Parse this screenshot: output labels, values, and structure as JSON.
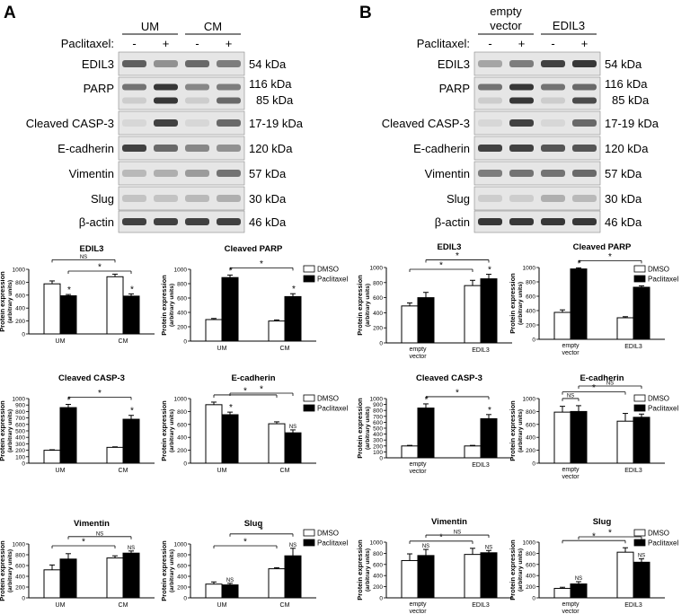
{
  "panels": [
    {
      "letter": "A",
      "groups": [
        "UM",
        "CM"
      ],
      "treatment_label": "Paclitaxel:",
      "lanes": [
        "-",
        "+",
        "-",
        "+"
      ],
      "blot_rows": [
        {
          "protein": "EDIL3",
          "size": "54 kDa",
          "bands": [
            0.65,
            0.4,
            0.6,
            0.5
          ]
        },
        {
          "protein": "PARP",
          "size": "116 kDa",
          "size2": "85 kDa",
          "bands": [
            0.55,
            0.85,
            0.45,
            0.5
          ],
          "bands2": [
            0.1,
            0.85,
            0.1,
            0.6
          ]
        },
        {
          "protein": "Cleaved CASP-3",
          "size": "17-19 kDa",
          "bands": [
            0.05,
            0.8,
            0.05,
            0.6
          ]
        },
        {
          "protein": "E-cadherin",
          "size": "120 kDa",
          "bands": [
            0.8,
            0.6,
            0.45,
            0.4
          ]
        },
        {
          "protein": "Vimentin",
          "size": "57 kDa",
          "bands": [
            0.2,
            0.25,
            0.35,
            0.55
          ]
        },
        {
          "protein": "Slug",
          "size": "30 kDa",
          "bands": [
            0.15,
            0.15,
            0.2,
            0.25
          ]
        },
        {
          "protein": "β-actin",
          "size": "46 kDa",
          "bands": [
            0.8,
            0.8,
            0.8,
            0.8
          ]
        }
      ]
    },
    {
      "letter": "B",
      "groups": [
        "empty vector",
        "EDIL3"
      ],
      "treatment_label": "Paclitaxel:",
      "lanes": [
        "-",
        "+",
        "-",
        "+"
      ],
      "blot_rows": [
        {
          "protein": "EDIL3",
          "size": "54 kDa",
          "bands": [
            0.3,
            0.5,
            0.8,
            0.85
          ]
        },
        {
          "protein": "PARP",
          "size": "116 kDa",
          "size2": "85 kDa",
          "bands": [
            0.55,
            0.85,
            0.55,
            0.6
          ],
          "bands2": [
            0.1,
            0.85,
            0.1,
            0.75
          ]
        },
        {
          "protein": "Cleaved CASP-3",
          "size": "17-19 kDa",
          "bands": [
            0.05,
            0.8,
            0.05,
            0.6
          ]
        },
        {
          "protein": "E-cadherin",
          "size": "120 kDa",
          "bands": [
            0.8,
            0.8,
            0.7,
            0.7
          ]
        },
        {
          "protein": "Vimentin",
          "size": "57 kDa",
          "bands": [
            0.5,
            0.55,
            0.55,
            0.6
          ]
        },
        {
          "protein": "Slug",
          "size": "30 kDa",
          "bands": [
            0.1,
            0.1,
            0.25,
            0.2
          ]
        },
        {
          "protein": "β-actin",
          "size": "46 kDa",
          "bands": [
            0.85,
            0.85,
            0.85,
            0.85
          ]
        }
      ]
    }
  ],
  "legend": {
    "items": [
      "DMSO",
      "Paclitaxel"
    ],
    "colors": [
      "#ffffff",
      "#000000"
    ]
  },
  "chart_data": [
    {
      "type": "bar",
      "panel": "A",
      "title": "EDIL3",
      "ylabel": "Protein expression",
      "ylabel2": "(arbitrary units)",
      "categories": [
        "UM",
        "CM"
      ],
      "ylim": [
        0,
        1000
      ],
      "yticks": [
        0,
        200,
        400,
        600,
        800,
        1000
      ],
      "series": [
        {
          "name": "DMSO",
          "values": [
            775,
            885
          ],
          "errors": [
            45,
            40
          ]
        },
        {
          "name": "Paclitaxel",
          "values": [
            590,
            585
          ],
          "errors": [
            20,
            35
          ]
        }
      ],
      "bar_marks": [
        [
          null,
          "*"
        ],
        [
          null,
          "*"
        ]
      ],
      "brackets": [
        {
          "from": [
            0,
            0
          ],
          "to": [
            1,
            0
          ],
          "label": "NS",
          "level": 1
        },
        {
          "from": [
            0,
            1
          ],
          "to": [
            1,
            1
          ],
          "label": "*",
          "level": 0
        }
      ]
    },
    {
      "type": "bar",
      "panel": "A",
      "title": "Cleaved PARP",
      "ylabel": "Protein expression",
      "ylabel2": "(arbitrary units)",
      "categories": [
        "UM",
        "CM"
      ],
      "ylim": [
        0,
        1000
      ],
      "yticks": [
        0,
        200,
        400,
        600,
        800,
        1000
      ],
      "series": [
        {
          "name": "DMSO",
          "values": [
            300,
            280
          ],
          "errors": [
            15,
            15
          ]
        },
        {
          "name": "Paclitaxel",
          "values": [
            885,
            620
          ],
          "errors": [
            35,
            40
          ]
        }
      ],
      "bar_marks": [
        [
          null,
          "*"
        ],
        [
          null,
          "*"
        ]
      ],
      "brackets": [
        {
          "from": [
            0,
            1
          ],
          "to": [
            1,
            1
          ],
          "label": "*",
          "level": 0
        }
      ]
    },
    {
      "type": "bar",
      "panel": "B",
      "title": "EDIL3",
      "ylabel": "Protein expression",
      "ylabel2": "(arbitrary units)",
      "categories": [
        "empty vector",
        "EDIL3"
      ],
      "ylim": [
        0,
        1000
      ],
      "yticks": [
        0,
        200,
        400,
        600,
        800,
        1000
      ],
      "series": [
        {
          "name": "DMSO",
          "values": [
            490,
            760
          ],
          "errors": [
            40,
            70
          ]
        },
        {
          "name": "Paclitaxel",
          "values": [
            600,
            850
          ],
          "errors": [
            70,
            60
          ]
        }
      ],
      "bar_marks": [
        [
          null,
          null
        ],
        [
          null,
          "*"
        ]
      ],
      "brackets": [
        {
          "from": [
            0,
            0
          ],
          "to": [
            1,
            0
          ],
          "label": "*",
          "level": 0
        },
        {
          "from": [
            0,
            1
          ],
          "to": [
            1,
            1
          ],
          "label": "*",
          "level": 1
        }
      ]
    },
    {
      "type": "bar",
      "panel": "B",
      "title": "Cleaved PARP",
      "ylabel": "Protein expression",
      "ylabel2": "(arbitrary units)",
      "categories": [
        "empty vector",
        "EDIL3"
      ],
      "ylim": [
        0,
        1000
      ],
      "yticks": [
        0,
        200,
        400,
        600,
        800,
        1000
      ],
      "series": [
        {
          "name": "DMSO",
          "values": [
            375,
            300
          ],
          "errors": [
            35,
            15
          ]
        },
        {
          "name": "Paclitaxel",
          "values": [
            980,
            725
          ],
          "errors": [
            15,
            20
          ]
        }
      ],
      "bar_marks": [
        [
          null,
          "*"
        ],
        [
          null,
          "*"
        ]
      ],
      "brackets": [
        {
          "from": [
            0,
            1
          ],
          "to": [
            1,
            1
          ],
          "label": "*",
          "level": 0
        }
      ]
    },
    {
      "type": "bar",
      "panel": "A",
      "title": "Cleaved CASP-3",
      "ylabel": "Protein expression",
      "ylabel2": "(arbitrary units)",
      "categories": [
        "UM",
        "CM"
      ],
      "ylim": [
        0,
        1000
      ],
      "yticks": [
        0,
        100,
        200,
        300,
        400,
        500,
        600,
        700,
        800,
        900,
        1000
      ],
      "series": [
        {
          "name": "DMSO",
          "values": [
            200,
            245
          ],
          "errors": [
            8,
            8
          ]
        },
        {
          "name": "Paclitaxel",
          "values": [
            860,
            680
          ],
          "errors": [
            50,
            60
          ]
        }
      ],
      "bar_marks": [
        [
          null,
          "*"
        ],
        [
          null,
          "*"
        ]
      ],
      "brackets": [
        {
          "from": [
            0,
            1
          ],
          "to": [
            1,
            1
          ],
          "label": "*",
          "level": 0
        }
      ]
    },
    {
      "type": "bar",
      "panel": "A",
      "title": "E-cadherin",
      "ylabel": "Protein expression",
      "ylabel2": "(arbitrary units)",
      "categories": [
        "UM",
        "CM"
      ],
      "ylim": [
        0,
        1000
      ],
      "yticks": [
        0,
        200,
        400,
        600,
        800,
        1000
      ],
      "series": [
        {
          "name": "DMSO",
          "values": [
            905,
            610
          ],
          "errors": [
            40,
            30
          ]
        },
        {
          "name": "Paclitaxel",
          "values": [
            750,
            470
          ],
          "errors": [
            40,
            45
          ]
        }
      ],
      "bar_marks": [
        [
          null,
          "*"
        ],
        [
          null,
          "NS"
        ]
      ],
      "brackets": [
        {
          "from": [
            0,
            0
          ],
          "to": [
            1,
            0
          ],
          "label": "*",
          "level": 0
        },
        {
          "from": [
            0,
            1
          ],
          "to": [
            1,
            1
          ],
          "label": "*",
          "level": 1
        }
      ]
    },
    {
      "type": "bar",
      "panel": "B",
      "title": "Cleaved CASP-3",
      "ylabel": "Protein expression",
      "ylabel2": "(arbitrary units)",
      "categories": [
        "empty vector",
        "EDIL3"
      ],
      "ylim": [
        0,
        1000
      ],
      "yticks": [
        0,
        100,
        200,
        300,
        400,
        500,
        600,
        700,
        800,
        900,
        1000
      ],
      "series": [
        {
          "name": "DMSO",
          "values": [
            200,
            200
          ],
          "errors": [
            10,
            10
          ]
        },
        {
          "name": "Paclitaxel",
          "values": [
            840,
            660
          ],
          "errors": [
            70,
            70
          ]
        }
      ],
      "bar_marks": [
        [
          null,
          "*"
        ],
        [
          null,
          "*"
        ]
      ],
      "brackets": [
        {
          "from": [
            0,
            1
          ],
          "to": [
            1,
            1
          ],
          "label": "*",
          "level": 0
        }
      ]
    },
    {
      "type": "bar",
      "panel": "B",
      "title": "E-cadherin",
      "ylabel": "Protein expression",
      "ylabel2": "(arbitrary units)",
      "categories": [
        "empty vector",
        "EDIL3"
      ],
      "ylim": [
        0,
        1000
      ],
      "yticks": [
        0,
        200,
        400,
        600,
        800,
        1000
      ],
      "series": [
        {
          "name": "DMSO",
          "values": [
            790,
            650
          ],
          "errors": [
            90,
            120
          ]
        },
        {
          "name": "Paclitaxel",
          "values": [
            800,
            710
          ],
          "errors": [
            90,
            50
          ]
        }
      ],
      "bar_marks": [
        [
          null,
          null
        ],
        [
          null,
          null
        ]
      ],
      "brackets": [
        {
          "from": [
            0,
            0
          ],
          "to": [
            0,
            1
          ],
          "label": "NS",
          "level": 0
        },
        {
          "from": [
            0,
            0
          ],
          "to": [
            1,
            0
          ],
          "label": "*",
          "level": 1
        },
        {
          "from": [
            0,
            1
          ],
          "to": [
            1,
            1
          ],
          "label": "NS",
          "level": 2
        }
      ]
    },
    {
      "type": "bar",
      "panel": "A",
      "title": "Vimentin",
      "ylabel": "Protein expression",
      "ylabel2": "(arbitrary units)",
      "categories": [
        "UM",
        "CM"
      ],
      "ylim": [
        0,
        1000
      ],
      "yticks": [
        0,
        200,
        400,
        600,
        800,
        1000
      ],
      "series": [
        {
          "name": "DMSO",
          "values": [
            520,
            740
          ],
          "errors": [
            90,
            40
          ]
        },
        {
          "name": "Paclitaxel",
          "values": [
            720,
            830
          ],
          "errors": [
            100,
            40
          ]
        }
      ],
      "bar_marks": [
        [
          null,
          null
        ],
        [
          null,
          "NS"
        ]
      ],
      "brackets": [
        {
          "from": [
            0,
            0
          ],
          "to": [
            1,
            0
          ],
          "label": "*",
          "level": 0
        },
        {
          "from": [
            0,
            1
          ],
          "to": [
            1,
            1
          ],
          "label": "NS",
          "level": 1
        }
      ]
    },
    {
      "type": "bar",
      "panel": "A",
      "title": "Slug",
      "ylabel": "Protein expression",
      "ylabel2": "(arbitrary units)",
      "categories": [
        "UM",
        "CM"
      ],
      "ylim": [
        0,
        1000
      ],
      "yticks": [
        0,
        200,
        400,
        600,
        800,
        1000
      ],
      "series": [
        {
          "name": "DMSO",
          "values": [
            255,
            540
          ],
          "errors": [
            40,
            20
          ]
        },
        {
          "name": "Paclitaxel",
          "values": [
            240,
            780
          ],
          "errors": [
            30,
            140
          ]
        }
      ],
      "bar_marks": [
        [
          null,
          "NS"
        ],
        [
          null,
          "NS"
        ]
      ],
      "brackets": [
        {
          "from": [
            0,
            0
          ],
          "to": [
            1,
            0
          ],
          "label": "*",
          "level": 0
        },
        {
          "from": [
            0,
            1
          ],
          "to": [
            1,
            1
          ],
          "label": "*",
          "level": 1
        }
      ]
    },
    {
      "type": "bar",
      "panel": "B",
      "title": "Vimentin",
      "ylabel": "Protein expression",
      "ylabel2": "(arbitrary units)",
      "categories": [
        "empty vector",
        "EDIL3"
      ],
      "ylim": [
        0,
        1000
      ],
      "yticks": [
        0,
        200,
        400,
        600,
        800,
        1000
      ],
      "series": [
        {
          "name": "DMSO",
          "values": [
            670,
            780
          ],
          "errors": [
            120,
            110
          ]
        },
        {
          "name": "Paclitaxel",
          "values": [
            760,
            810
          ],
          "errors": [
            110,
            40
          ]
        }
      ],
      "bar_marks": [
        [
          null,
          "NS"
        ],
        [
          null,
          "NS"
        ]
      ],
      "brackets": [
        {
          "from": [
            0,
            0
          ],
          "to": [
            1,
            0
          ],
          "label": "*",
          "level": 0
        },
        {
          "from": [
            0,
            1
          ],
          "to": [
            1,
            1
          ],
          "label": "NS",
          "level": 1
        }
      ]
    },
    {
      "type": "bar",
      "panel": "B",
      "title": "Slug",
      "ylabel": "Protein expression",
      "ylabel2": "(arbitrary units)",
      "categories": [
        "empty vector",
        "EDIL3"
      ],
      "ylim": [
        0,
        1000
      ],
      "yticks": [
        0,
        200,
        400,
        600,
        800,
        1000
      ],
      "series": [
        {
          "name": "DMSO",
          "values": [
            170,
            820
          ],
          "errors": [
            20,
            80
          ]
        },
        {
          "name": "Paclitaxel",
          "values": [
            250,
            640
          ],
          "errors": [
            40,
            60
          ]
        }
      ],
      "bar_marks": [
        [
          null,
          "NS"
        ],
        [
          null,
          "NS"
        ]
      ],
      "brackets": [
        {
          "from": [
            0,
            0
          ],
          "to": [
            1,
            0
          ],
          "label": "*",
          "level": 0
        },
        {
          "from": [
            0,
            1
          ],
          "to": [
            1,
            1
          ],
          "label": "*",
          "level": 1
        }
      ]
    }
  ]
}
